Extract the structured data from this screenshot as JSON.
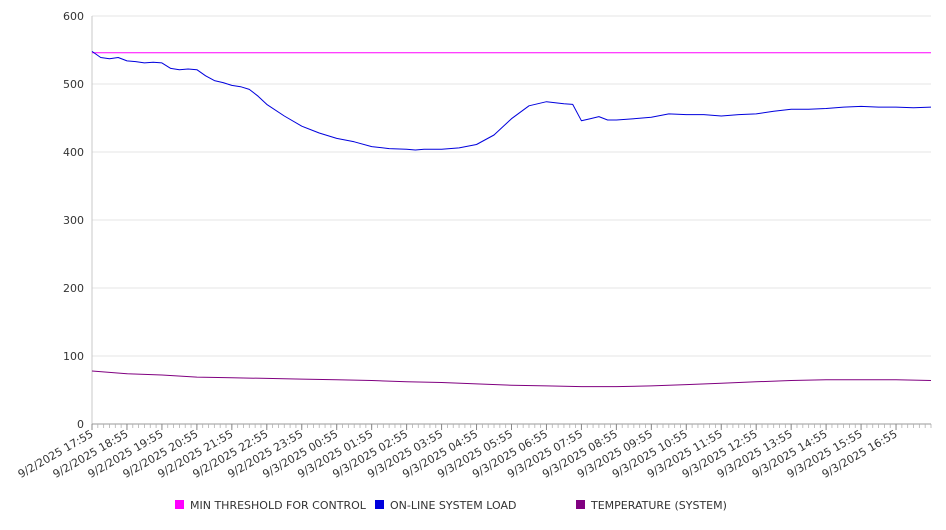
{
  "chart_data": {
    "type": "line",
    "title": "",
    "xlabel": "",
    "ylabel": "",
    "ylim": [
      0,
      600
    ],
    "y_ticks": [
      0,
      100,
      200,
      300,
      400,
      500,
      600
    ],
    "grid": "horizontal",
    "legend_placement": "bottom",
    "x_tick_labels": [
      "9/2/2025 17:55",
      "9/2/2025 18:55",
      "9/2/2025 19:55",
      "9/2/2025 20:55",
      "9/2/2025 21:55",
      "9/2/2025 22:55",
      "9/2/2025 23:55",
      "9/3/2025 00:55",
      "9/3/2025 01:55",
      "9/3/2025 02:55",
      "9/3/2025 03:55",
      "9/3/2025 04:55",
      "9/3/2025 05:55",
      "9/3/2025 06:55",
      "9/3/2025 07:55",
      "9/3/2025 08:55",
      "9/3/2025 09:55",
      "9/3/2025 10:55",
      "9/3/2025 11:55",
      "9/3/2025 12:55",
      "9/3/2025 13:55",
      "9/3/2025 14:55",
      "9/3/2025 15:55",
      "9/3/2025 16:55"
    ],
    "x_range": [
      "9/2/2025 17:55",
      "9/3/2025 17:55"
    ],
    "series": [
      {
        "name": "MIN THRESHOLD FOR CONTROL",
        "color": "#ff00ff",
        "x": [
          "9/2/2025 17:55",
          "9/3/2025 17:55"
        ],
        "values": [
          546,
          546
        ]
      },
      {
        "name": "ON-LINE SYSTEM LOAD",
        "color": "#0000dd",
        "x": [
          "9/2/2025 17:55",
          "9/2/2025 18:10",
          "9/2/2025 18:25",
          "9/2/2025 18:40",
          "9/2/2025 18:55",
          "9/2/2025 19:10",
          "9/2/2025 19:25",
          "9/2/2025 19:40",
          "9/2/2025 19:55",
          "9/2/2025 20:10",
          "9/2/2025 20:25",
          "9/2/2025 20:40",
          "9/2/2025 20:55",
          "9/2/2025 21:10",
          "9/2/2025 21:25",
          "9/2/2025 21:40",
          "9/2/2025 21:55",
          "9/2/2025 22:10",
          "9/2/2025 22:25",
          "9/2/2025 22:40",
          "9/2/2025 22:55",
          "9/2/2025 23:25",
          "9/2/2025 23:55",
          "9/3/2025 00:25",
          "9/3/2025 00:55",
          "9/3/2025 01:25",
          "9/3/2025 01:55",
          "9/3/2025 02:25",
          "9/3/2025 02:55",
          "9/3/2025 03:10",
          "9/3/2025 03:25",
          "9/3/2025 03:55",
          "9/3/2025 04:25",
          "9/3/2025 04:55",
          "9/3/2025 05:25",
          "9/3/2025 05:55",
          "9/3/2025 06:25",
          "9/3/2025 06:55",
          "9/3/2025 07:25",
          "9/3/2025 07:40",
          "9/3/2025 07:55",
          "9/3/2025 08:10",
          "9/3/2025 08:25",
          "9/3/2025 08:40",
          "9/3/2025 08:55",
          "9/3/2025 09:25",
          "9/3/2025 09:55",
          "9/3/2025 10:25",
          "9/3/2025 10:55",
          "9/3/2025 11:25",
          "9/3/2025 11:55",
          "9/3/2025 12:25",
          "9/3/2025 12:55",
          "9/3/2025 13:25",
          "9/3/2025 13:55",
          "9/3/2025 14:25",
          "9/3/2025 14:55",
          "9/3/2025 15:25",
          "9/3/2025 15:55",
          "9/3/2025 16:25",
          "9/3/2025 16:55",
          "9/3/2025 17:25",
          "9/3/2025 17:55"
        ],
        "values": [
          548,
          539,
          537,
          539,
          534,
          533,
          531,
          532,
          531,
          523,
          521,
          522,
          521,
          512,
          505,
          502,
          498,
          496,
          492,
          482,
          470,
          453,
          438,
          428,
          420,
          415,
          408,
          405,
          404,
          403,
          404,
          404,
          406,
          411,
          425,
          449,
          468,
          474,
          471,
          470,
          446,
          449,
          452,
          447,
          447,
          449,
          451,
          456,
          455,
          455,
          453,
          455,
          456,
          460,
          463,
          463,
          464,
          466,
          467,
          466,
          466,
          465,
          466
        ]
      },
      {
        "name": "TEMPERATURE (SYSTEM)",
        "color": "#800080",
        "x": [
          "9/2/2025 17:55",
          "9/2/2025 18:55",
          "9/2/2025 19:55",
          "9/2/2025 20:55",
          "9/2/2025 21:55",
          "9/2/2025 22:55",
          "9/2/2025 23:55",
          "9/3/2025 00:55",
          "9/3/2025 01:55",
          "9/3/2025 02:55",
          "9/3/2025 03:55",
          "9/3/2025 04:55",
          "9/3/2025 05:55",
          "9/3/2025 06:55",
          "9/3/2025 07:55",
          "9/3/2025 08:55",
          "9/3/2025 09:55",
          "9/3/2025 10:55",
          "9/3/2025 11:55",
          "9/3/2025 12:55",
          "9/3/2025 13:55",
          "9/3/2025 14:55",
          "9/3/2025 15:55",
          "9/3/2025 16:55",
          "9/3/2025 17:55"
        ],
        "values": [
          78,
          74,
          72,
          69,
          68,
          67,
          66,
          65,
          64,
          62,
          61,
          59,
          57,
          56,
          55,
          55,
          56,
          58,
          60,
          62,
          64,
          65,
          65,
          65,
          64
        ]
      }
    ]
  }
}
